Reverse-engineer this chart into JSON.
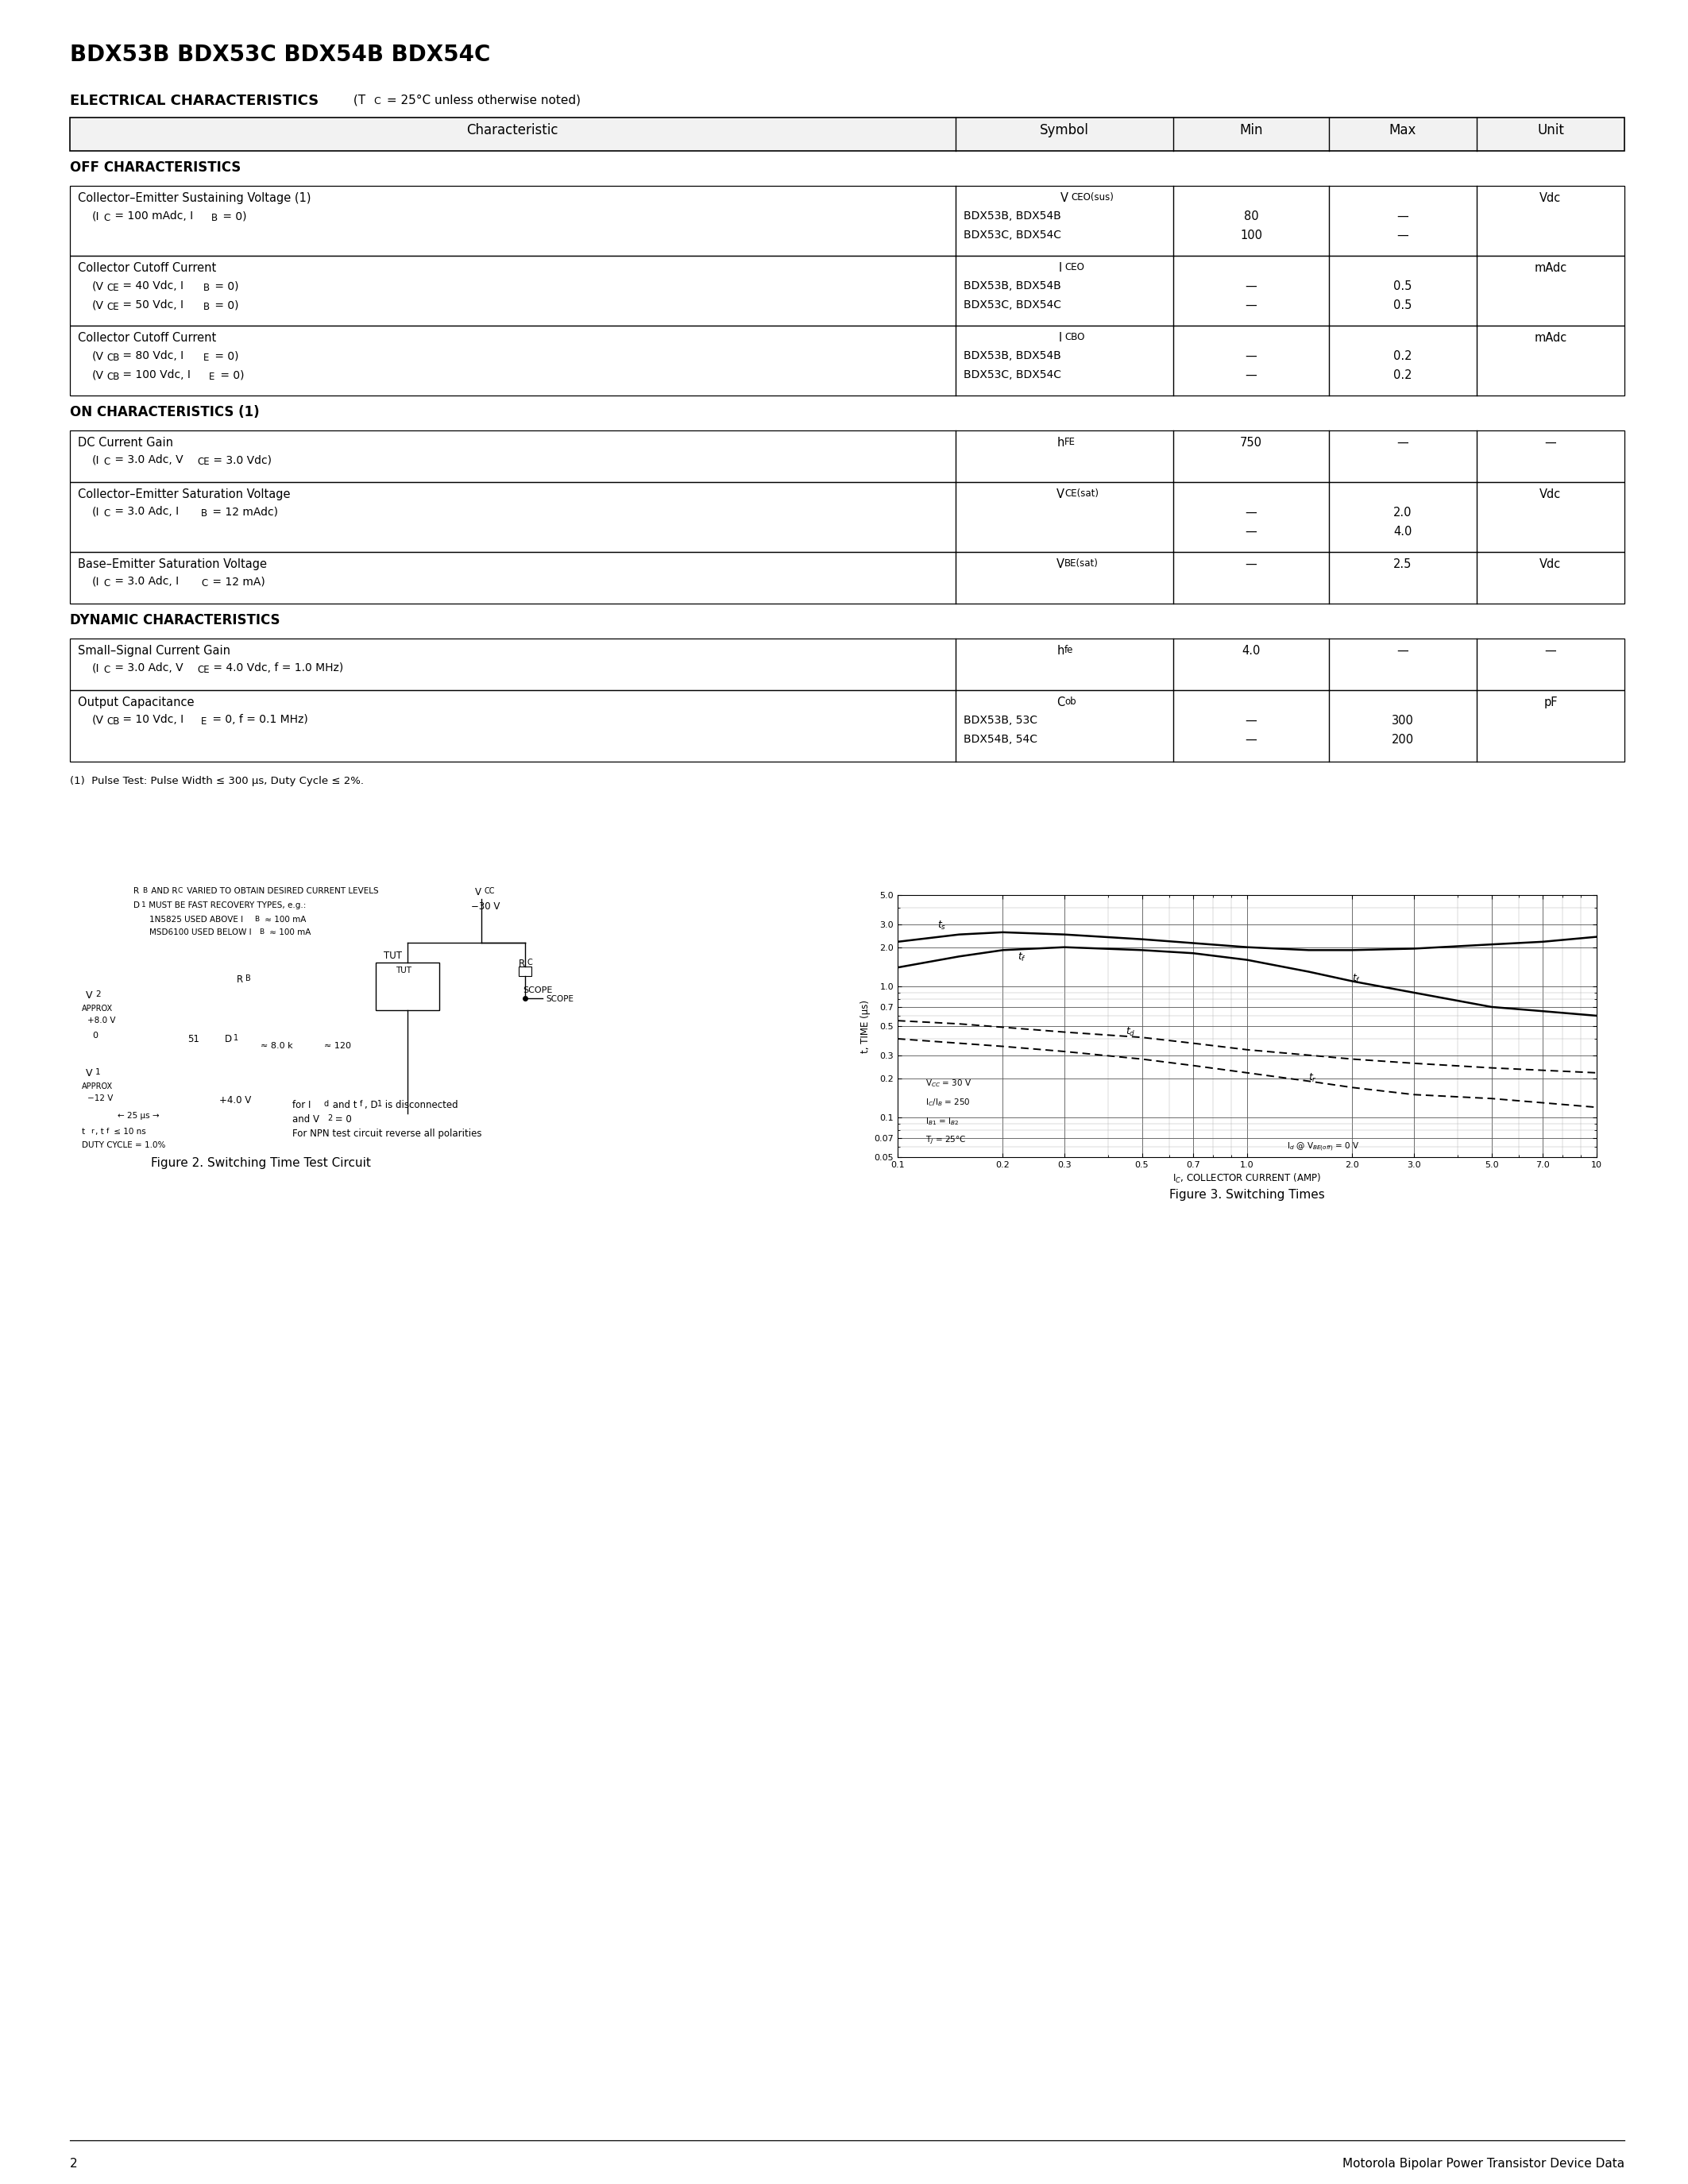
{
  "title": "BDX53B BDX53C BDX54B BDX54C",
  "page_number": "2",
  "footer_text": "Motorola Bipolar Power Transistor Device Data",
  "bg_color": "#ffffff",
  "off_label": "OFF CHARACTERISTICS",
  "on_label": "ON CHARACTERISTICS (1)",
  "dyn_label": "DYNAMIC CHARACTERISTICS",
  "footnote": "(1)  Pulse Test: Pulse Width ≤ 300 μs, Duty Cycle ≤ 2%.",
  "fig2_caption": "Figure 2. Switching Time Test Circuit",
  "fig3_caption": "Figure 3. Switching Times"
}
